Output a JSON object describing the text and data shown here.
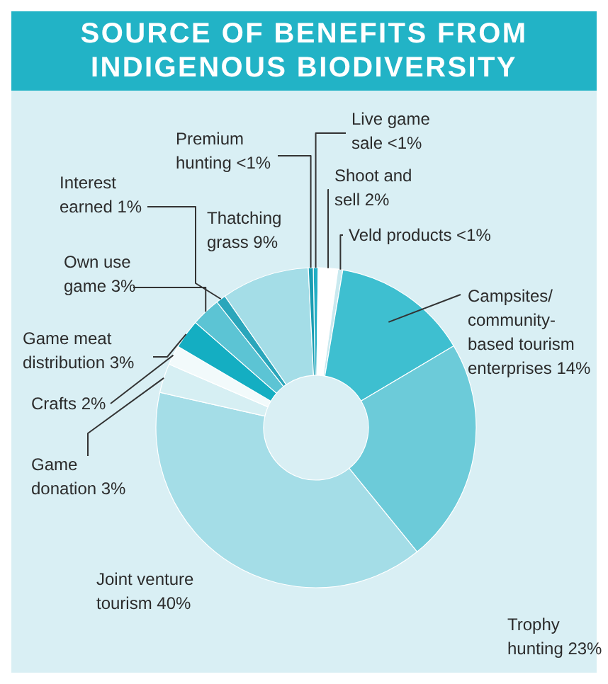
{
  "chart_data": {
    "type": "donut",
    "title": "SOURCE OF BENEFITS FROM INDIGENOUS BIODIVERSITY",
    "categories": [
      "Live game sale",
      "Shoot and sell",
      "Veld products",
      "Campsites/community-based tourism enterprises",
      "Trophy hunting",
      "Joint venture tourism",
      "Game donation",
      "Crafts",
      "Game meat distribution",
      "Own use game",
      "Interest earned",
      "Thatching grass",
      "Premium hunting"
    ],
    "values": [
      0.5,
      2,
      0.5,
      14,
      23,
      40,
      3,
      2,
      3,
      3,
      1,
      9,
      0.5
    ],
    "value_labels": [
      "<1%",
      "2%",
      "<1%",
      "14%",
      "23%",
      "40%",
      "3%",
      "2%",
      "3%",
      "3%",
      "1%",
      "9%",
      "<1%"
    ],
    "colors": [
      "#22aec4",
      "#ffffff",
      "#c9e9ef",
      "#3ebfd0",
      "#6ccbd9",
      "#a4dde7",
      "#d6eff3",
      "#f2fafb",
      "#14aec2",
      "#5cc4d4",
      "#2aa6bb",
      "#a4dde7",
      "#1a9db2"
    ]
  }
}
